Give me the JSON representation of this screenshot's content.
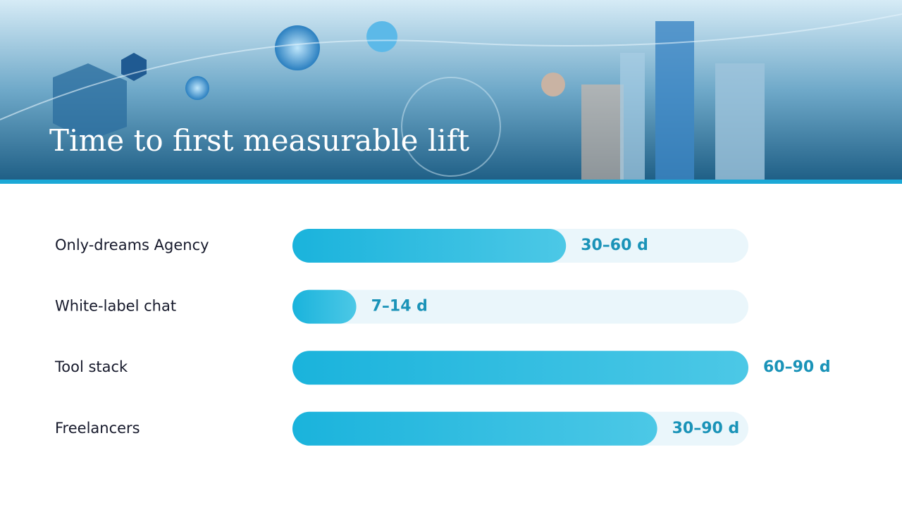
{
  "chart_data": {
    "type": "hbar",
    "title": "Time to first measurable lift",
    "categories": [
      "Only-dreams Agency",
      "White-label chat",
      "Tool stack",
      "Freelancers"
    ],
    "values": [
      45,
      10.5,
      75,
      60
    ],
    "value_labels": [
      "30–60 d",
      "7–14 d",
      "60–90 d",
      "30–90 d"
    ],
    "xlim": [
      0,
      75
    ],
    "color": "#1ab3dc"
  }
}
